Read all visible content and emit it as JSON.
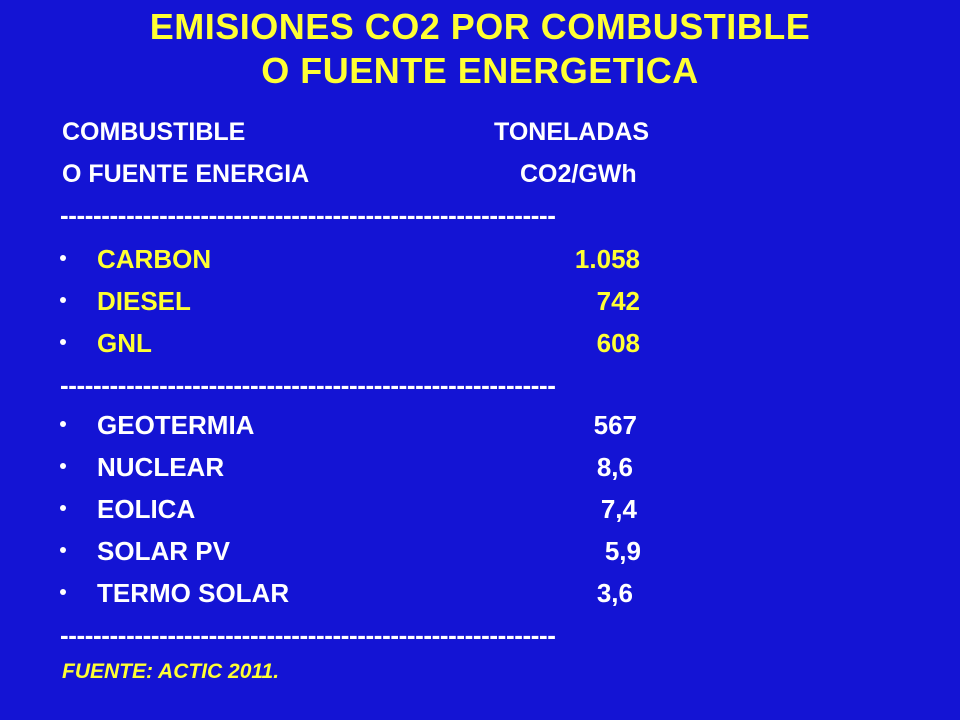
{
  "title": {
    "line1": "EMISIONES CO2 POR COMBUSTIBLE",
    "line2": "O FUENTE ENERGETICA"
  },
  "header": {
    "col1_line1": "COMBUSTIBLE",
    "col1_line2": "O FUENTE ENERGIA",
    "col2_line1": "TONELADAS",
    "col2_line2": "CO2/GWh"
  },
  "separator": "------------------------------------------------------------",
  "fossil": [
    {
      "name": "CARBON",
      "value": "1.058"
    },
    {
      "name": "DIESEL",
      "value": "742"
    },
    {
      "name": "GNL",
      "value": "608"
    }
  ],
  "other": [
    {
      "name": "GEOTERMIA",
      "value": "567"
    },
    {
      "name": "NUCLEAR",
      "value": "8,6"
    },
    {
      "name": "EOLICA",
      "value": "7,4"
    },
    {
      "name": "SOLAR PV",
      "value": "5,9"
    },
    {
      "name": "TERMO SOLAR",
      "value": "3,6"
    }
  ],
  "source": "FUENTE: ACTIC 2011.",
  "colors": {
    "background": "#1414d4",
    "highlight": "#ffff33",
    "text": "#ffffff"
  }
}
